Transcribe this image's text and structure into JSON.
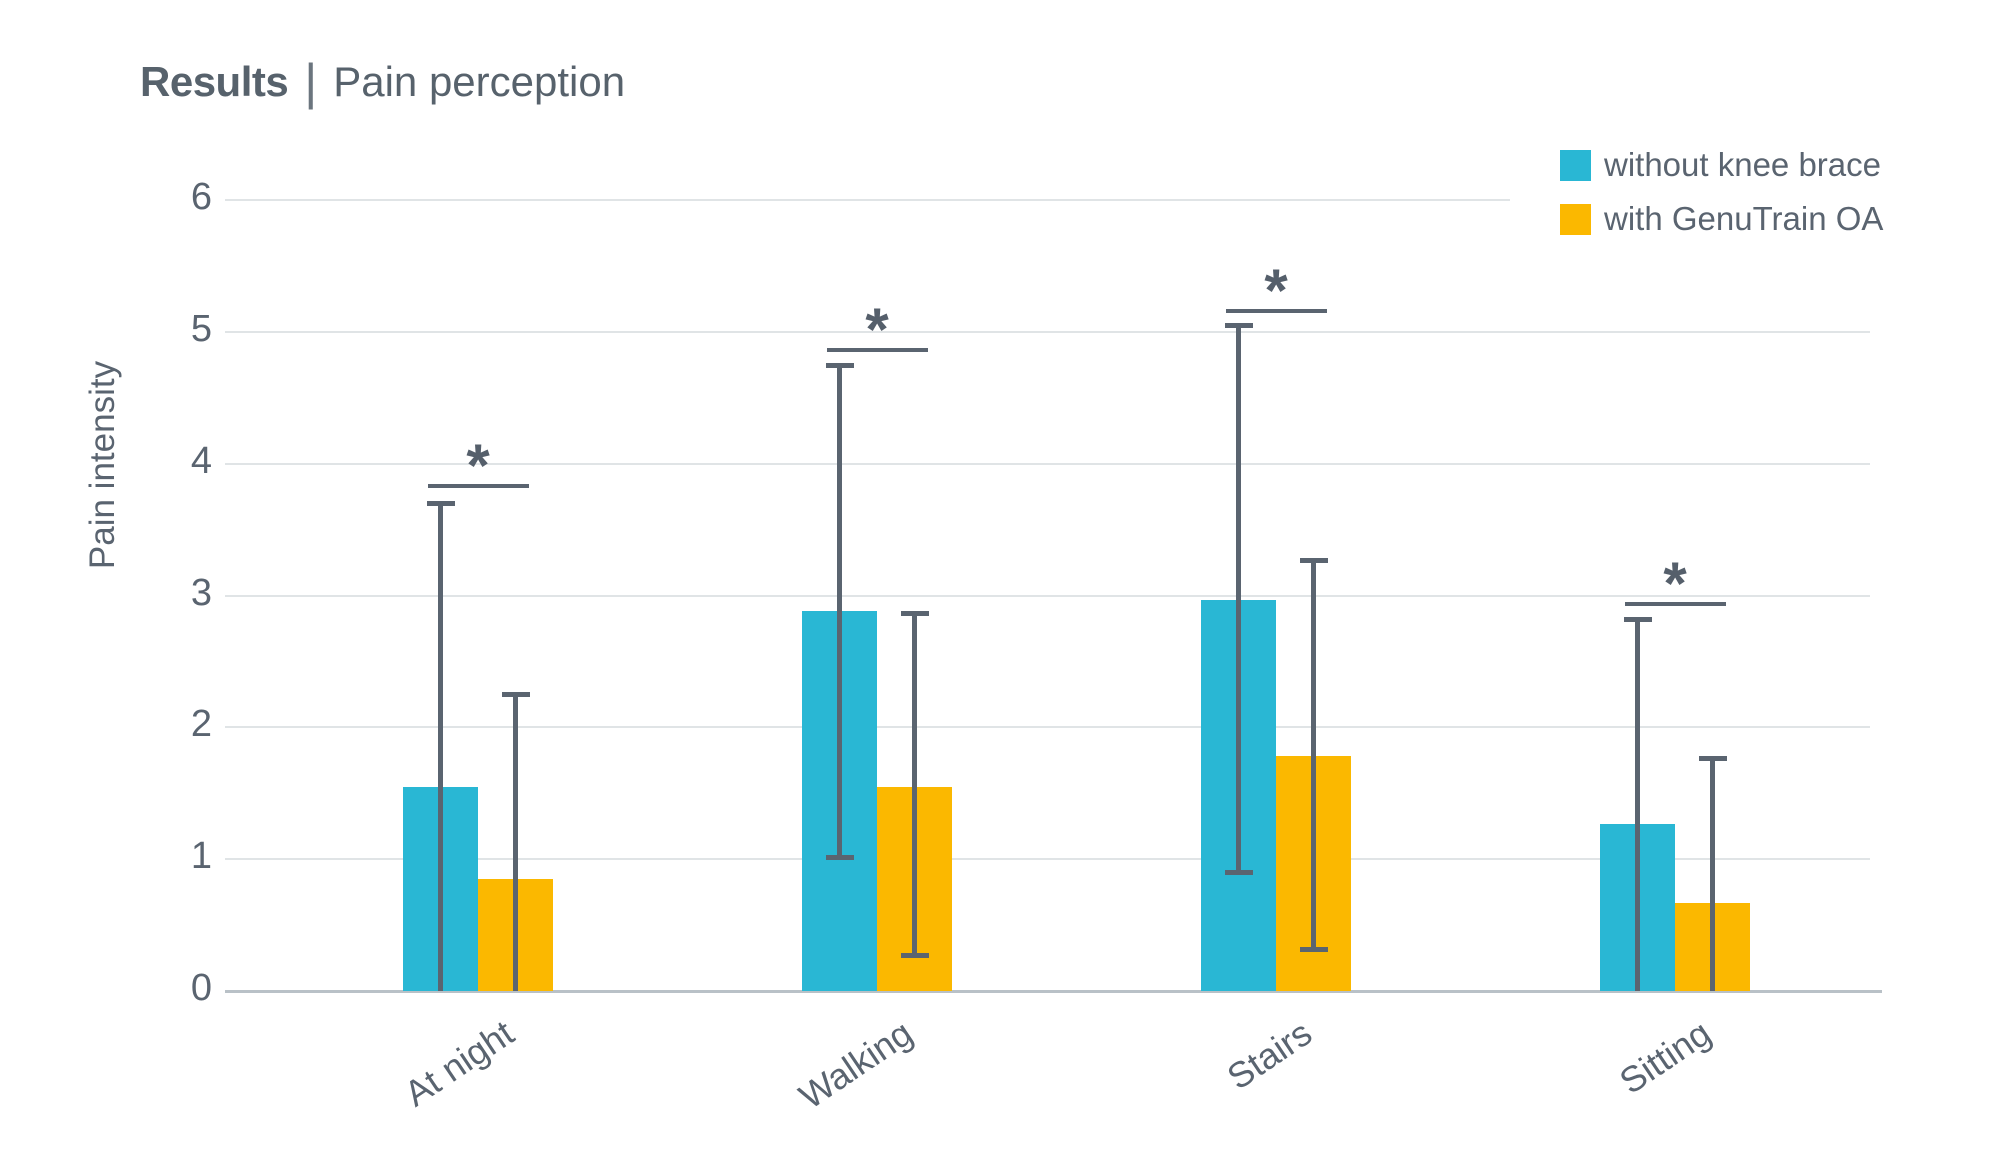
{
  "header": {
    "title_full": "Results | Pain perception"
  },
  "chart_data": {
    "type": "bar",
    "title": "Results | Pain perception",
    "title_parts": {
      "bold": "Results",
      "separator": "|",
      "rest": "Pain perception"
    },
    "ylabel": "Pain intensity",
    "xlabel": "",
    "ylim": [
      0,
      6
    ],
    "yticks": [
      0,
      1,
      2,
      3,
      4,
      5,
      6
    ],
    "grid": "horizontal",
    "legend_position": "top-right",
    "categories": [
      "At night",
      "Walking",
      "Stairs",
      "Sitting"
    ],
    "series": [
      {
        "name": "without knee brace",
        "color": "#29b7d4",
        "values": [
          1.55,
          2.88,
          2.97,
          1.27
        ],
        "error_high": [
          3.7,
          4.75,
          5.05,
          2.82
        ],
        "error_low": [
          0,
          1.02,
          0.9,
          0
        ]
      },
      {
        "name": "with GenuTrain OA",
        "color": "#fbb800",
        "values": [
          0.85,
          1.55,
          1.78,
          0.67
        ],
        "error_high": [
          2.25,
          2.87,
          3.27,
          1.77
        ],
        "error_low": [
          0,
          0.27,
          0.32,
          0
        ]
      }
    ],
    "significance": {
      "marker": "*",
      "bracket_values": [
        3.83,
        4.86,
        5.16,
        2.94
      ],
      "applies_to": "all category pairs"
    },
    "colors": {
      "text": "#5a6470",
      "error_bar": "#5a6470",
      "gridline": "#e0e4e6",
      "baseline": "#b9c1c7"
    }
  }
}
